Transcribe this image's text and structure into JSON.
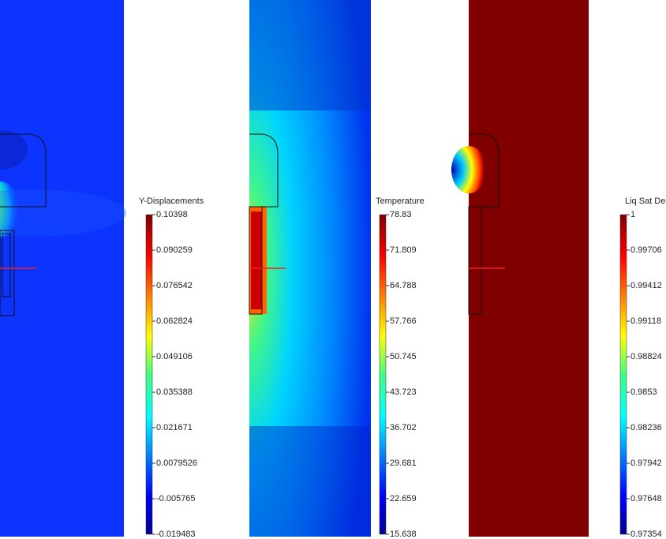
{
  "panels": [
    {
      "title": "Y-Displacements",
      "ticks": [
        "0.10398",
        "0.090259",
        "0.076542",
        "0.062824",
        "0.049106",
        "0.035388",
        "0.021671",
        "0.0079526",
        "-0.005765",
        "-0.019483"
      ]
    },
    {
      "title": "Temperature",
      "ticks": [
        "78.83",
        "71.809",
        "64.788",
        "57.766",
        "50.745",
        "43.723",
        "36.702",
        "29.681",
        "22.659",
        "15.638"
      ]
    },
    {
      "title": "Liq Sat Deg",
      "ticks": [
        "1",
        "0.99706",
        "0.99412",
        "0.99118",
        "0.98824",
        "0.9853",
        "0.98236",
        "0.97942",
        "0.97648",
        "0.97354"
      ]
    }
  ]
}
